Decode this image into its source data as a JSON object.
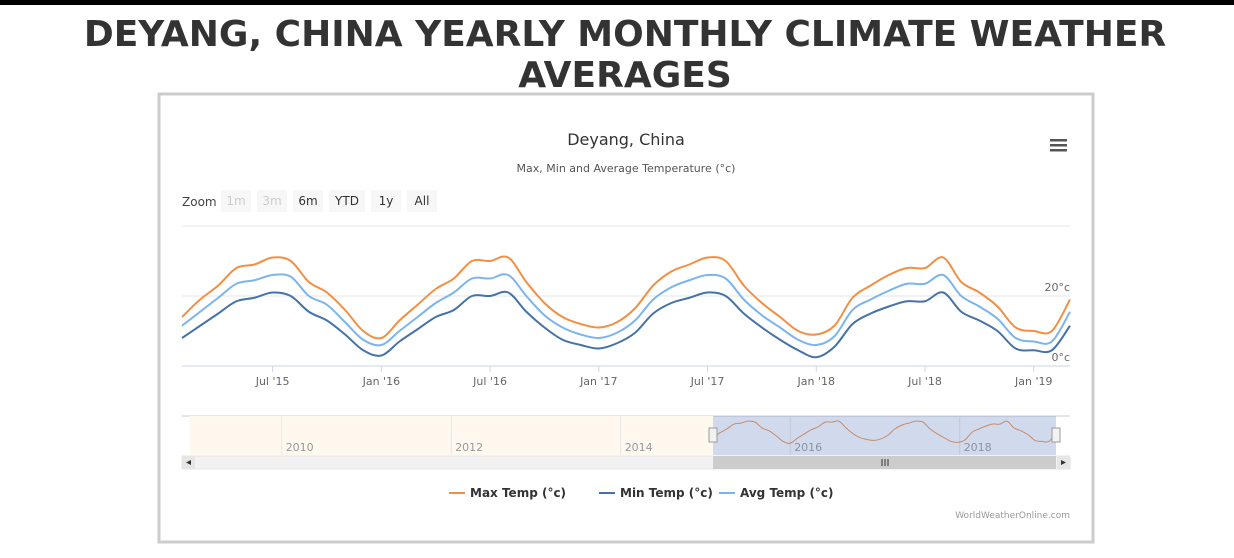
{
  "page_title": "DEYANG, CHINA YEARLY MONTHLY CLIMATE WEATHER AVERAGES",
  "chart_data": {
    "type": "line",
    "title": "Deyang, China",
    "subtitle": "Max, Min and Average Temperature (°c)",
    "zoom_label": "Zoom",
    "zoom_buttons": [
      "1m",
      "3m",
      "6m",
      "YTD",
      "1y",
      "All"
    ],
    "credit": "WorldWeatherOnline.com",
    "x": [
      "2015-02",
      "2015-03",
      "2015-04",
      "2015-05",
      "2015-06",
      "2015-07",
      "2015-08",
      "2015-09",
      "2015-10",
      "2015-11",
      "2015-12",
      "2016-01",
      "2016-02",
      "2016-03",
      "2016-04",
      "2016-05",
      "2016-06",
      "2016-07",
      "2016-08",
      "2016-09",
      "2016-10",
      "2016-11",
      "2016-12",
      "2017-01",
      "2017-02",
      "2017-03",
      "2017-04",
      "2017-05",
      "2017-06",
      "2017-07",
      "2017-08",
      "2017-09",
      "2017-10",
      "2017-11",
      "2017-12",
      "2018-01",
      "2018-02",
      "2018-03",
      "2018-04",
      "2018-05",
      "2018-06",
      "2018-07",
      "2018-08",
      "2018-09",
      "2018-10",
      "2018-11",
      "2018-12",
      "2019-01",
      "2019-02",
      "2019-03"
    ],
    "xlim": [
      "2015-02",
      "2019-03"
    ],
    "xticks": [
      {
        "value": "2015-07",
        "label": "Jul '15"
      },
      {
        "value": "2016-01",
        "label": "Jan '16"
      },
      {
        "value": "2016-07",
        "label": "Jul '16"
      },
      {
        "value": "2017-01",
        "label": "Jan '17"
      },
      {
        "value": "2017-07",
        "label": "Jul '17"
      },
      {
        "value": "2018-01",
        "label": "Jan '18"
      },
      {
        "value": "2018-07",
        "label": "Jul '18"
      },
      {
        "value": "2019-01",
        "label": "Jan '19"
      }
    ],
    "ylim": [
      0,
      40
    ],
    "yticks": [
      {
        "value": 0,
        "label": "0°c"
      },
      {
        "value": 20,
        "label": "20°c"
      }
    ],
    "grid": true,
    "legend": "bottom",
    "series": [
      {
        "name": "Max Temp (°c)",
        "color": "#f28f43",
        "values": [
          14,
          19,
          23,
          28,
          29,
          31,
          30,
          24,
          21,
          16,
          10,
          8,
          13,
          17.5,
          22,
          25,
          30,
          30,
          31,
          24,
          18,
          14,
          12,
          11,
          12.5,
          16.5,
          23,
          27,
          29,
          31,
          30,
          23,
          18,
          14,
          10,
          9,
          11.5,
          19.5,
          23,
          26,
          28,
          28,
          31,
          24,
          21,
          17,
          11,
          10,
          10,
          19
        ]
      },
      {
        "name": "Min Temp (°c)",
        "color": "#4572a7",
        "values": [
          8,
          11.5,
          15,
          18.5,
          19.5,
          21,
          20,
          15.5,
          13,
          9,
          4.5,
          3,
          7,
          10.5,
          14,
          16,
          20,
          20,
          21,
          15.5,
          11,
          7.5,
          6,
          5,
          6.5,
          9.5,
          15,
          18,
          19.5,
          21,
          20,
          15,
          11,
          7.5,
          4.5,
          2.5,
          5.5,
          12,
          15,
          17,
          18.5,
          18.5,
          21,
          15.5,
          13,
          10,
          5,
          4.5,
          4.5,
          11.5
        ]
      },
      {
        "name": "Avg Temp (°c)",
        "color": "#7cb5ec",
        "values": [
          11.5,
          15.5,
          19.5,
          23.5,
          24.5,
          26,
          25.5,
          20,
          17.5,
          12.5,
          7.5,
          6,
          10,
          14,
          18,
          21,
          25,
          25,
          26,
          20,
          14.5,
          11,
          9,
          8,
          9.5,
          13,
          19,
          22.5,
          24.5,
          26,
          25,
          19,
          14.5,
          11,
          7.5,
          6,
          8.5,
          16,
          19,
          21.5,
          23.5,
          23.5,
          26,
          20,
          17,
          13.5,
          8,
          7,
          7,
          15.5
        ]
      }
    ],
    "navigator": {
      "labels": [
        "2010",
        "2012",
        "2014",
        "2016",
        "2018"
      ]
    }
  }
}
